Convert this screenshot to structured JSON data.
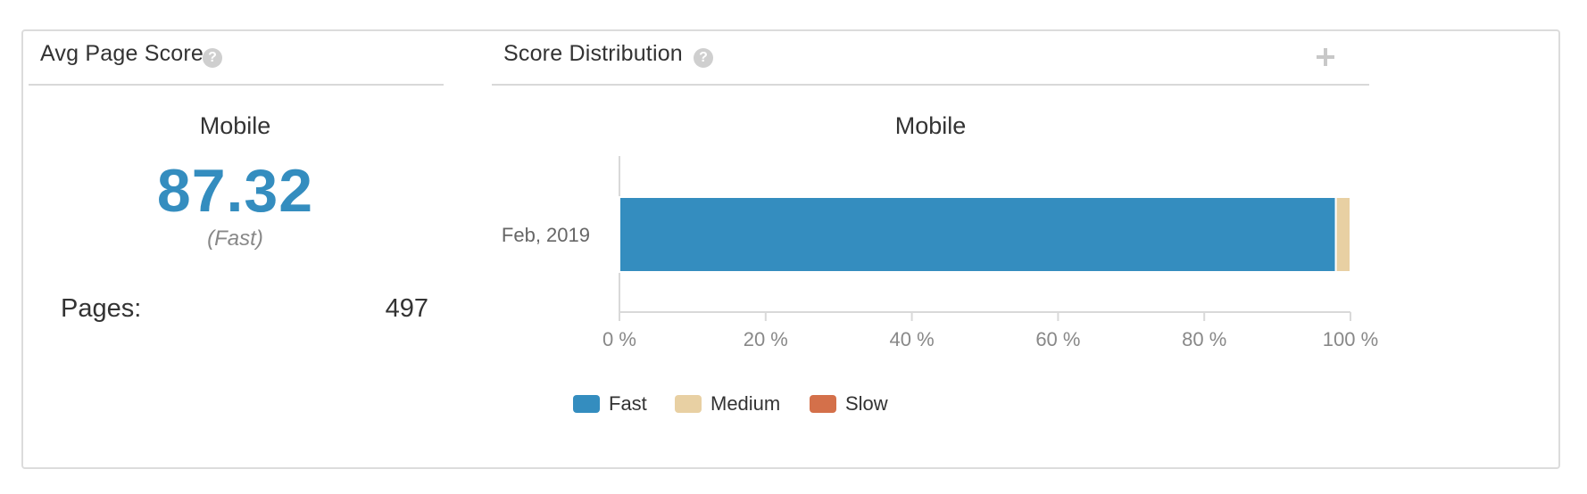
{
  "avg_panel": {
    "title": "Avg Page Score",
    "help_icon": "question-circle-icon",
    "subtitle": "Mobile",
    "score": "87.32",
    "rating": "(Fast)",
    "pages_label": "Pages:",
    "pages_value": "497"
  },
  "dist_panel": {
    "title": "Score Distribution",
    "help_icon": "question-circle-icon",
    "expand_icon": "plus-icon",
    "subtitle": "Mobile"
  },
  "colors": {
    "fast": "#348dbf",
    "medium": "#e8d0a3",
    "slow": "#d4704a",
    "score": "#348dbf"
  },
  "chart_data": {
    "type": "bar",
    "orientation": "horizontal",
    "stacked": true,
    "title": "Mobile",
    "categories": [
      "Feb, 2019"
    ],
    "series": [
      {
        "name": "Fast",
        "values": [
          98
        ],
        "color": "#348dbf"
      },
      {
        "name": "Medium",
        "values": [
          2
        ],
        "color": "#e8d0a3"
      },
      {
        "name": "Slow",
        "values": [
          0
        ],
        "color": "#d4704a"
      }
    ],
    "xlim": [
      0,
      100
    ],
    "xticks": [
      0,
      20,
      40,
      60,
      80,
      100
    ],
    "xtick_labels": [
      "0 %",
      "20 %",
      "40 %",
      "60 %",
      "80 %",
      "100 %"
    ],
    "grid": false,
    "legend": "bottom"
  }
}
